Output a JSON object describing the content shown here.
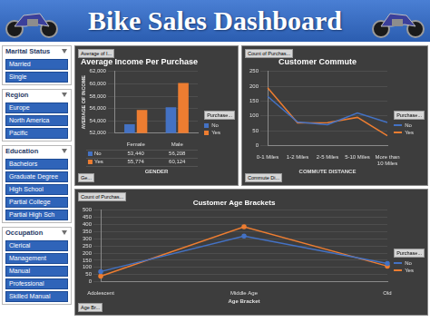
{
  "header": {
    "title": "Bike Sales Dashboard"
  },
  "slicers": [
    {
      "title": "Marital Status",
      "items": [
        "Married",
        "Single"
      ]
    },
    {
      "title": "Region",
      "items": [
        "Europe",
        "North America",
        "Pacific"
      ]
    },
    {
      "title": "Education",
      "items": [
        "Bachelors",
        "Graduate Degree",
        "High School",
        "Partial College",
        "Partial High Sch"
      ]
    },
    {
      "title": "Occupation",
      "items": [
        "Clerical",
        "Management",
        "Manual",
        "Professional",
        "Skilled Manual"
      ]
    }
  ],
  "chart_data": [
    {
      "type": "bar",
      "title": "Average Income Per Purchase",
      "x_label": "GENDER",
      "y_label": "AVERAGE OF INCOME",
      "categories": [
        "Female",
        "Male"
      ],
      "series": [
        {
          "name": "No",
          "color": "#4472c4",
          "values": [
            53440,
            56208
          ],
          "value_labels": [
            "53,440",
            "56,208"
          ]
        },
        {
          "name": "Yes",
          "color": "#ed7d31",
          "values": [
            55774,
            60124
          ],
          "value_labels": [
            "55,774",
            "60,124"
          ]
        }
      ],
      "ylim": [
        52000,
        62000
      ],
      "yticks": [
        {
          "value": 52000,
          "label": "52,000"
        },
        {
          "value": 54000,
          "label": "54,000"
        },
        {
          "value": 56000,
          "label": "56,000"
        },
        {
          "value": 58000,
          "label": "58,000"
        },
        {
          "value": 60000,
          "label": "60,000"
        },
        {
          "value": 62000,
          "label": "62,000"
        }
      ],
      "grid": true,
      "legend": "right",
      "data_labels": true,
      "annotations": [
        "Average of I...",
        "Ge...",
        "Purchase..."
      ]
    },
    {
      "type": "line",
      "title": "Customer Commute",
      "x_label": "COMMUTE DISTANCE",
      "categories": [
        "0-1 Miles",
        "1-2 Miles",
        "2-5 Miles",
        "5-10 Miles",
        "More than 10 Miles"
      ],
      "series": [
        {
          "name": "No",
          "color": "#4472c4",
          "values": [
            166,
            79,
            70,
            110,
            78
          ]
        },
        {
          "name": "Yes",
          "color": "#ed7d31",
          "values": [
            195,
            76,
            77,
            95,
            33
          ]
        }
      ],
      "ylim": [
        0,
        250
      ],
      "yticks": [
        0,
        50,
        100,
        150,
        200,
        250
      ],
      "grid": true,
      "legend": "right",
      "annotations": [
        "Count of Purchas...",
        "Commute Di...",
        "Purchase..."
      ]
    },
    {
      "type": "line",
      "title": "Customer Age Brackets",
      "x_label": "Age Bracket",
      "categories": [
        "Adolescent",
        "Middle Age",
        "Old"
      ],
      "series": [
        {
          "name": "No",
          "color": "#4472c4",
          "values": [
            71,
            318,
            127
          ]
        },
        {
          "name": "Yes",
          "color": "#ed7d31",
          "values": [
            39,
            383,
            109
          ]
        }
      ],
      "ylim": [
        0,
        500
      ],
      "yticks": [
        0,
        50,
        100,
        150,
        200,
        250,
        300,
        350,
        400,
        450,
        500
      ],
      "grid": true,
      "legend": "right",
      "marker": "circle",
      "annotations": [
        "Count of Purchas...",
        "Age Br...",
        "Purchase..."
      ]
    }
  ]
}
